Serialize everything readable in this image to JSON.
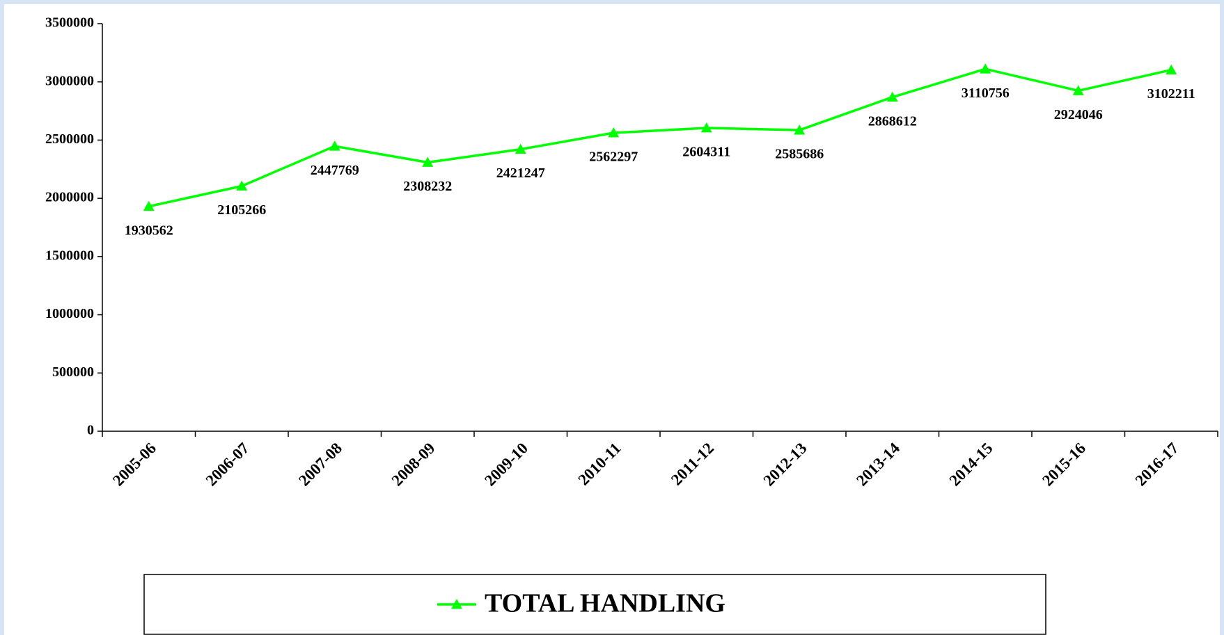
{
  "chart_data": {
    "type": "line",
    "categories": [
      "2005-06",
      "2006-07",
      "2007-08",
      "2008-09",
      "2009-10",
      "2010-11",
      "2011-12",
      "2012-13",
      "2013-14",
      "2014-15",
      "2015-16",
      "2016-17"
    ],
    "series": [
      {
        "name": "TOTAL HANDLING",
        "color": "#00ff00",
        "values": [
          1930562,
          2105266,
          2447769,
          2308232,
          2421247,
          2562297,
          2604311,
          2585686,
          2868612,
          3110756,
          2924046,
          3102211
        ]
      }
    ],
    "ylim": [
      0,
      3500000
    ],
    "yticks": [
      0,
      500000,
      1000000,
      1500000,
      2000000,
      2500000,
      3000000,
      3500000
    ],
    "grid": false,
    "data_labels": true,
    "legend": "bottom",
    "marker": "triangle"
  }
}
